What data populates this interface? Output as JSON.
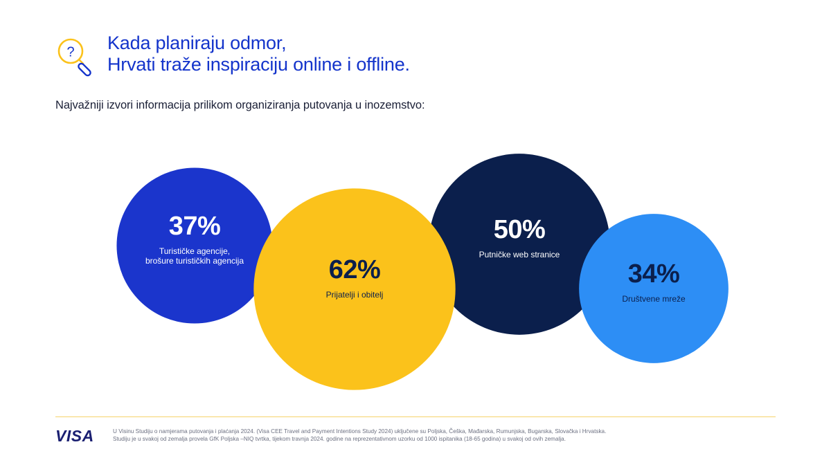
{
  "header": {
    "icon": "magnifier-question-icon",
    "title_line1": "Kada planiraju odmor,",
    "title_line2": "Hrvati traže inspiraciju online i offline.",
    "subtitle": "Najvažniji izvori informacija prilikom organiziranja putovanja u inozemstvo:"
  },
  "colors": {
    "title": "#1434CB",
    "agencies": "#1B35CC",
    "friends": "#FBC21B",
    "web": "#0B1F4C",
    "social": "#2D8EF5",
    "divider": "#F5D36A",
    "logo": "#1A1F71"
  },
  "chart_data": {
    "type": "bubble",
    "unit": "%",
    "categories": [
      "Turističke agencije, brošure turističkih agencija",
      "Prijatelji i obitelj",
      "Putničke web stranice",
      "Društvene mreže"
    ],
    "values": [
      37,
      62,
      50,
      34
    ],
    "value_labels": [
      "37%",
      "62%",
      "50%",
      "34%"
    ],
    "label_lines": [
      [
        "Turističke agencije,",
        "brošure turističkih agencija"
      ],
      [
        "Prijatelji i obitelj"
      ],
      [
        "Putničke web stranice"
      ],
      [
        "Društvene mreže"
      ]
    ],
    "fill_colors": [
      "#1B35CC",
      "#FBC21B",
      "#0B1F4C",
      "#2D8EF5"
    ],
    "text_colors": [
      "#FFFFFF",
      "#0B1F4C",
      "#FFFFFF",
      "#0B1F4C"
    ]
  },
  "footer": {
    "logo": "VISA",
    "note_line1": "U Visinu Studiju o namjerama putovanja i plaćanja 2024. (Visa CEE Travel and Payment Intentions Study 2024) uključene su Poljska, Češka, Mađarska, Rumunjska, Bugarska, Slovačka i Hrvatska.",
    "note_line2": "Studiju je u svakoj od zemalja provela GfK Poljska –NIQ tvrtka,  tijekom travnja 2024. godine na reprezentativnom uzorku od 1000 ispitanika (18-65 godina) u svakoj od ovih zemalja."
  }
}
